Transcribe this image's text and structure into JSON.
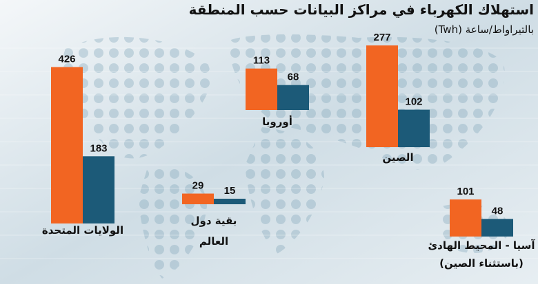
{
  "header": {
    "title": "استهلاك الكهرباء في مراكز البيانات حسب المنطقة",
    "subtitle": "بالتيراواط/ساعة (Twh)"
  },
  "colors": {
    "orange": "#f26522",
    "blue": "#1c5a78",
    "text": "#111111"
  },
  "chart_data": {
    "type": "bar",
    "series_colors": [
      "#f26522",
      "#1c5a78"
    ],
    "groups": [
      {
        "region_lines": [
          "الولايات المتحدة"
        ],
        "values": [
          426,
          183
        ]
      },
      {
        "region_lines": [
          "بقية دول",
          "العالم"
        ],
        "values": [
          29,
          15
        ]
      },
      {
        "region_lines": [
          "أوروبا"
        ],
        "values": [
          113,
          68
        ]
      },
      {
        "region_lines": [
          "الصين"
        ],
        "values": [
          277,
          102
        ]
      },
      {
        "region_lines": [
          "آسيا - المحيط الهادئ",
          "(باستثناء الصين)"
        ],
        "values": [
          101,
          48
        ]
      }
    ]
  }
}
